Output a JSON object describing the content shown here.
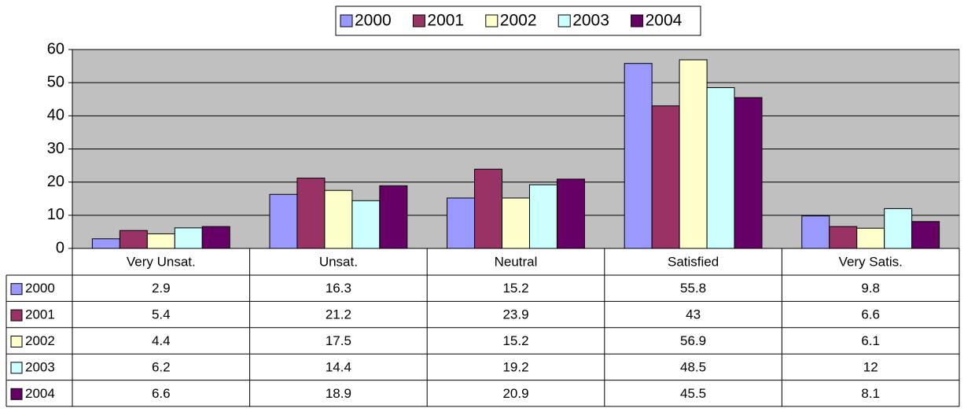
{
  "chart_data": {
    "type": "bar",
    "categories": [
      "Very Unsat.",
      "Unsat.",
      "Neutral",
      "Satisfied",
      "Very Satis."
    ],
    "series": [
      {
        "name": "2000",
        "color": "#9999ff",
        "values": [
          2.9,
          16.3,
          15.2,
          55.8,
          9.8
        ]
      },
      {
        "name": "2001",
        "color": "#993366",
        "values": [
          5.4,
          21.2,
          23.9,
          43,
          6.6
        ]
      },
      {
        "name": "2002",
        "color": "#ffffcc",
        "values": [
          4.4,
          17.5,
          15.2,
          56.9,
          6.1
        ]
      },
      {
        "name": "2003",
        "color": "#ccffff",
        "values": [
          6.2,
          14.4,
          19.2,
          48.5,
          12
        ]
      },
      {
        "name": "2004",
        "color": "#660066",
        "values": [
          6.6,
          18.9,
          20.9,
          45.5,
          8.1
        ]
      }
    ],
    "ylim": [
      0,
      60
    ],
    "yticks": [
      0,
      10,
      20,
      30,
      40,
      50,
      60
    ],
    "grid": true,
    "legend": "top",
    "plot_background": "#c0c0c0"
  }
}
